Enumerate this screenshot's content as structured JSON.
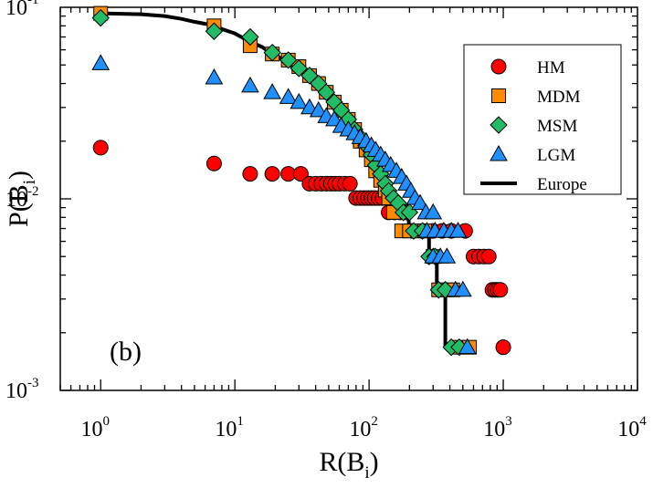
{
  "chart_data": {
    "type": "scatter",
    "panel_label": "(b)",
    "xscale": "log",
    "yscale": "log",
    "xlim": [
      0.5,
      10000
    ],
    "ylim": [
      0.001,
      0.1
    ],
    "xlabel": {
      "main": "R(B",
      "sub": "i",
      "close": ")"
    },
    "ylabel": {
      "main": "P(B",
      "sub": "i",
      "close": ")"
    },
    "xticks": [
      {
        "value": 1,
        "base": "10",
        "exp": "0"
      },
      {
        "value": 10,
        "base": "10",
        "exp": "1"
      },
      {
        "value": 100,
        "base": "10",
        "exp": "2"
      },
      {
        "value": 1000,
        "base": "10",
        "exp": "3"
      },
      {
        "value": 10000,
        "base": "10",
        "exp": "4"
      }
    ],
    "yticks": [
      {
        "value": 0.001,
        "base": "10",
        "exp": "-3"
      },
      {
        "value": 0.01,
        "base": "10",
        "exp": "-2"
      },
      {
        "value": 0.1,
        "base": "10",
        "exp": "-1"
      }
    ],
    "legend_position": "top-right",
    "series": [
      {
        "name": "HM",
        "marker": "circle",
        "color": "#ff0000",
        "points": [
          [
            1,
            0.0185
          ],
          [
            7,
            0.0153
          ],
          [
            13,
            0.0135
          ],
          [
            19,
            0.0135
          ],
          [
            25,
            0.0135
          ],
          [
            31,
            0.0135
          ],
          [
            36,
            0.012
          ],
          [
            40,
            0.012
          ],
          [
            44,
            0.012
          ],
          [
            48,
            0.012
          ],
          [
            52,
            0.012
          ],
          [
            56,
            0.012
          ],
          [
            60,
            0.012
          ],
          [
            66,
            0.012
          ],
          [
            72,
            0.012
          ],
          [
            80,
            0.0101
          ],
          [
            86,
            0.0101
          ],
          [
            92,
            0.0101
          ],
          [
            98,
            0.0101
          ],
          [
            104,
            0.0101
          ],
          [
            110,
            0.0101
          ],
          [
            118,
            0.0101
          ],
          [
            126,
            0.0101
          ],
          [
            140,
            0.0085
          ],
          [
            155,
            0.0085
          ],
          [
            170,
            0.0085
          ],
          [
            190,
            0.0085
          ],
          [
            210,
            0.0068
          ],
          [
            250,
            0.0068
          ],
          [
            300,
            0.0068
          ],
          [
            350,
            0.0068
          ],
          [
            410,
            0.0068
          ],
          [
            520,
            0.0068
          ],
          [
            600,
            0.005
          ],
          [
            660,
            0.005
          ],
          [
            720,
            0.005
          ],
          [
            780,
            0.005
          ],
          [
            830,
            0.00335
          ],
          [
            870,
            0.00335
          ],
          [
            910,
            0.00335
          ],
          [
            950,
            0.00335
          ],
          [
            1000,
            0.00168
          ]
        ]
      },
      {
        "name": "MDM",
        "marker": "square",
        "color": "#ff8c00",
        "points": [
          [
            1,
            0.093
          ],
          [
            7,
            0.08
          ],
          [
            13,
            0.063
          ],
          [
            19,
            0.057
          ],
          [
            25,
            0.053
          ],
          [
            30,
            0.049
          ],
          [
            36,
            0.044
          ],
          [
            42,
            0.04
          ],
          [
            48,
            0.036
          ],
          [
            55,
            0.032
          ],
          [
            62,
            0.029
          ],
          [
            70,
            0.026
          ],
          [
            78,
            0.023
          ],
          [
            86,
            0.02
          ],
          [
            95,
            0.018
          ],
          [
            104,
            0.016
          ],
          [
            112,
            0.014
          ],
          [
            122,
            0.0125
          ],
          [
            132,
            0.0111
          ],
          [
            140,
            0.0101
          ],
          [
            152,
            0.0085
          ],
          [
            175,
            0.0068
          ],
          [
            200,
            0.0068
          ],
          [
            230,
            0.0068
          ],
          [
            260,
            0.0068
          ],
          [
            300,
            0.005
          ],
          [
            330,
            0.00335
          ],
          [
            380,
            0.00335
          ],
          [
            420,
            0.00335
          ],
          [
            450,
            0.00168
          ],
          [
            560,
            0.00168
          ]
        ]
      },
      {
        "name": "MSM",
        "marker": "diamond",
        "color": "#22bb66",
        "points": [
          [
            1,
            0.088
          ],
          [
            7,
            0.075
          ],
          [
            13,
            0.07
          ],
          [
            19,
            0.058
          ],
          [
            25,
            0.053
          ],
          [
            30,
            0.048
          ],
          [
            36,
            0.044
          ],
          [
            42,
            0.04
          ],
          [
            48,
            0.036
          ],
          [
            55,
            0.032
          ],
          [
            62,
            0.029
          ],
          [
            70,
            0.026
          ],
          [
            78,
            0.023
          ],
          [
            86,
            0.021
          ],
          [
            95,
            0.019
          ],
          [
            104,
            0.017
          ],
          [
            112,
            0.015
          ],
          [
            122,
            0.0135
          ],
          [
            132,
            0.012
          ],
          [
            140,
            0.011
          ],
          [
            152,
            0.0101
          ],
          [
            165,
            0.0095
          ],
          [
            180,
            0.0085
          ],
          [
            200,
            0.0085
          ],
          [
            215,
            0.0068
          ],
          [
            250,
            0.0068
          ],
          [
            280,
            0.005
          ],
          [
            310,
            0.005
          ],
          [
            330,
            0.00335
          ],
          [
            370,
            0.00335
          ],
          [
            410,
            0.00168
          ],
          [
            470,
            0.00168
          ]
        ]
      },
      {
        "name": "LGM",
        "marker": "triangle",
        "color": "#1e90ff",
        "points": [
          [
            1,
            0.051
          ],
          [
            7,
            0.043
          ],
          [
            13,
            0.039
          ],
          [
            19,
            0.036
          ],
          [
            25,
            0.034
          ],
          [
            30,
            0.032
          ],
          [
            36,
            0.03
          ],
          [
            42,
            0.029
          ],
          [
            48,
            0.027
          ],
          [
            55,
            0.026
          ],
          [
            62,
            0.024
          ],
          [
            70,
            0.023
          ],
          [
            78,
            0.022
          ],
          [
            86,
            0.021
          ],
          [
            95,
            0.02
          ],
          [
            104,
            0.019
          ],
          [
            112,
            0.018
          ],
          [
            122,
            0.017
          ],
          [
            132,
            0.016
          ],
          [
            145,
            0.015
          ],
          [
            160,
            0.014
          ],
          [
            175,
            0.013
          ],
          [
            190,
            0.012
          ],
          [
            205,
            0.011
          ],
          [
            220,
            0.0101
          ],
          [
            240,
            0.0095
          ],
          [
            265,
            0.0085
          ],
          [
            300,
            0.0085
          ],
          [
            270,
            0.0068
          ],
          [
            310,
            0.0068
          ],
          [
            360,
            0.0068
          ],
          [
            410,
            0.0068
          ],
          [
            460,
            0.0068
          ],
          [
            300,
            0.005
          ],
          [
            340,
            0.005
          ],
          [
            380,
            0.005
          ],
          [
            440,
            0.00335
          ],
          [
            500,
            0.00335
          ],
          [
            540,
            0.00168
          ]
        ]
      },
      {
        "name": "Europe",
        "marker": "line",
        "color": "#000000",
        "points": [
          [
            1,
            0.093
          ],
          [
            2,
            0.092
          ],
          [
            3,
            0.09
          ],
          [
            4,
            0.087
          ],
          [
            5,
            0.084
          ],
          [
            6,
            0.082
          ],
          [
            7,
            0.08
          ],
          [
            8,
            0.077
          ],
          [
            10,
            0.073
          ],
          [
            13,
            0.066
          ],
          [
            16,
            0.062
          ],
          [
            19,
            0.057
          ],
          [
            25,
            0.052
          ],
          [
            30,
            0.047
          ],
          [
            36,
            0.043
          ],
          [
            42,
            0.04
          ],
          [
            50,
            0.035
          ],
          [
            60,
            0.031
          ],
          [
            70,
            0.027
          ],
          [
            80,
            0.024
          ],
          [
            90,
            0.021
          ],
          [
            100,
            0.019
          ],
          [
            110,
            0.017
          ],
          [
            120,
            0.015
          ],
          [
            130,
            0.013
          ],
          [
            140,
            0.012
          ],
          [
            150,
            0.011
          ],
          [
            165,
            0.0101
          ],
          [
            180,
            0.0095
          ],
          [
            195,
            0.0085
          ],
          [
            200,
            0.0068
          ],
          [
            250,
            0.0068
          ],
          [
            280,
            0.0068
          ],
          [
            280,
            0.005
          ],
          [
            320,
            0.005
          ],
          [
            320,
            0.00335
          ],
          [
            370,
            0.00335
          ],
          [
            370,
            0.00168
          ],
          [
            450,
            0.00168
          ]
        ]
      }
    ]
  }
}
